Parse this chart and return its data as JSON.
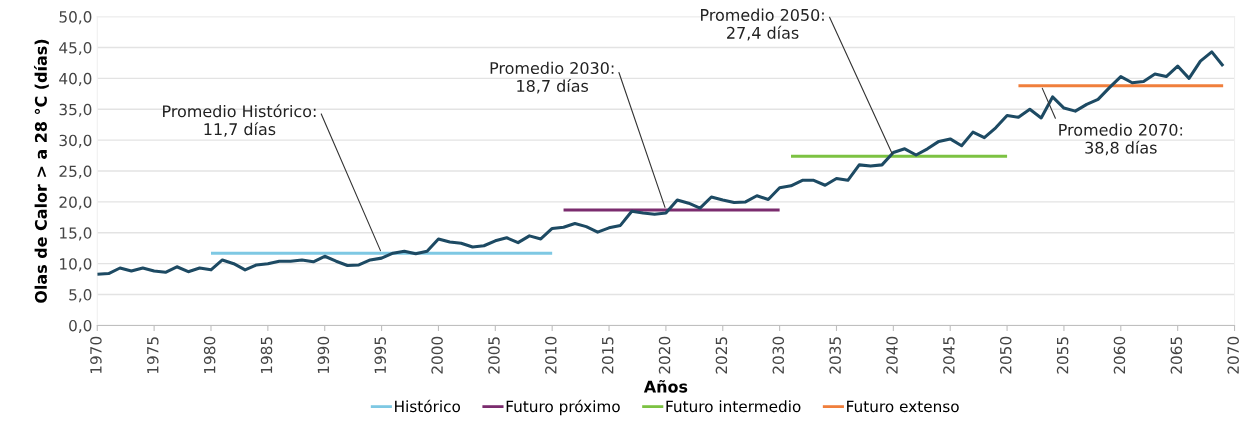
{
  "chart_data": {
    "type": "line",
    "xlabel": "Años",
    "ylabel": "Olas de Calor > a 28 °C (días)",
    "xlim": [
      1970,
      2070
    ],
    "xticks": [
      1970,
      1975,
      1980,
      1985,
      1990,
      1995,
      2000,
      2005,
      2010,
      2015,
      2020,
      2025,
      2030,
      2035,
      2040,
      2045,
      2050,
      2055,
      2060,
      2065,
      2070
    ],
    "ylim": [
      0,
      50
    ],
    "yticks": [
      {
        "value": 0,
        "label": "0,0"
      },
      {
        "value": 5,
        "label": "5,0"
      },
      {
        "value": 10,
        "label": "10,0"
      },
      {
        "value": 15,
        "label": "15,0"
      },
      {
        "value": 20,
        "label": "20,0"
      },
      {
        "value": 25,
        "label": "25,0"
      },
      {
        "value": 30,
        "label": "30,0"
      },
      {
        "value": 35,
        "label": "35,0"
      },
      {
        "value": 40,
        "label": "40,0"
      },
      {
        "value": 45,
        "label": "45,0"
      },
      {
        "value": 50,
        "label": "50,0"
      }
    ],
    "grid": "y",
    "legend": "bottom",
    "marker": "none",
    "line_style": "solid",
    "series": [
      {
        "color": "#1d4a63",
        "x": [
          1970,
          1971,
          1972,
          1973,
          1974,
          1975,
          1976,
          1977,
          1978,
          1979,
          1980,
          1981,
          1982,
          1983,
          1984,
          1985,
          1986,
          1987,
          1988,
          1989,
          1990,
          1991,
          1992,
          1993,
          1994,
          1995,
          1996,
          1997,
          1998,
          1999,
          2000,
          2001,
          2002,
          2003,
          2004,
          2005,
          2006,
          2007,
          2008,
          2009,
          2010,
          2011,
          2012,
          2013,
          2014,
          2015,
          2016,
          2017,
          2018,
          2019,
          2020,
          2021,
          2022,
          2023,
          2024,
          2025,
          2026,
          2027,
          2028,
          2029,
          2030,
          2031,
          2032,
          2033,
          2034,
          2035,
          2036,
          2037,
          2038,
          2039,
          2040,
          2041,
          2042,
          2043,
          2044,
          2045,
          2046,
          2047,
          2048,
          2049,
          2050,
          2051,
          2052,
          2053,
          2054,
          2055,
          2056,
          2057,
          2058,
          2059,
          2060,
          2061,
          2062,
          2063,
          2064,
          2065,
          2066,
          2067,
          2068,
          2069
        ],
        "values": [
          8.3,
          8.4,
          9.3,
          8.8,
          9.3,
          8.8,
          8.6,
          9.5,
          8.7,
          9.3,
          9.0,
          10.6,
          10.0,
          9.0,
          9.8,
          10.0,
          10.4,
          10.4,
          10.6,
          10.3,
          11.2,
          10.4,
          9.7,
          9.8,
          10.6,
          10.9,
          11.7,
          12.0,
          11.6,
          12.0,
          14.0,
          13.5,
          13.3,
          12.7,
          12.9,
          13.7,
          14.2,
          13.4,
          14.5,
          14.0,
          15.7,
          15.9,
          16.5,
          16.0,
          15.1,
          15.8,
          16.2,
          18.5,
          18.2,
          18.0,
          18.2,
          20.3,
          19.8,
          19.0,
          20.8,
          20.3,
          19.9,
          20.0,
          21.0,
          20.4,
          22.3,
          22.6,
          23.5,
          23.5,
          22.7,
          23.8,
          23.5,
          26.0,
          25.8,
          26.0,
          28.0,
          28.6,
          27.6,
          28.6,
          29.8,
          30.2,
          29.1,
          31.3,
          30.4,
          32.0,
          34.0,
          33.7,
          35.0,
          33.6,
          37.0,
          35.2,
          34.7,
          35.8,
          36.6,
          38.5,
          40.3,
          39.3,
          39.5,
          40.7,
          40.3,
          42.0,
          40.0,
          42.8,
          44.3,
          42.0
        ]
      },
      {
        "name": "Histórico",
        "color": "#7ec8e3",
        "x": [
          1980,
          2010
        ],
        "values": [
          11.7,
          11.7
        ]
      },
      {
        "name": "Futuro próximo",
        "color": "#7b2c6e",
        "x": [
          2011,
          2030
        ],
        "values": [
          18.7,
          18.7
        ]
      },
      {
        "name": "Futuro intermedio",
        "color": "#7cc242",
        "x": [
          2031,
          2050
        ],
        "values": [
          27.4,
          27.4
        ]
      },
      {
        "name": "Futuro extenso",
        "color": "#f07f3c",
        "x": [
          2051,
          2069
        ],
        "values": [
          38.8,
          38.8
        ]
      }
    ],
    "annotations": [
      {
        "text": "Promedio Histórico:\n11,7 días",
        "x": 1995,
        "y": 11.7
      },
      {
        "text": "Promedio 2030:\n18,7 días",
        "x": 2020,
        "y": 18.7
      },
      {
        "text": "Promedio 2050:\n27,4 días",
        "x": 2040,
        "y": 27.4
      },
      {
        "text": "Promedio 2070:\n38,8 días",
        "x": 2053,
        "y": 38.8
      }
    ]
  }
}
